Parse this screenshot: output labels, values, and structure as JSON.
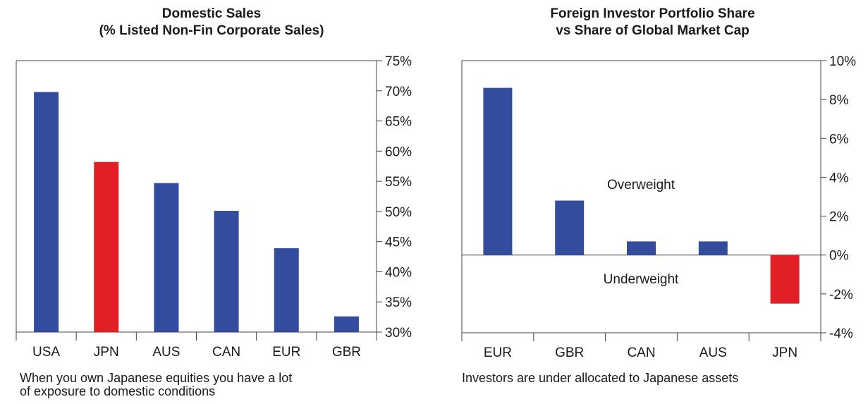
{
  "colors": {
    "primary": "#344C9E",
    "highlight": "#E01F26",
    "axis": "#444444"
  },
  "chart_data": [
    {
      "type": "bar",
      "title_line1": "Domestic Sales",
      "title_line2": "(% Listed Non-Fin Corporate Sales)",
      "categories": [
        "USA",
        "JPN",
        "AUS",
        "CAN",
        "EUR",
        "GBR"
      ],
      "values": [
        69.8,
        58.2,
        54.7,
        50.1,
        43.9,
        32.6
      ],
      "highlight": "JPN",
      "ylim": [
        30,
        75
      ],
      "yticks": [
        30,
        35,
        40,
        45,
        50,
        55,
        60,
        65,
        70,
        75
      ],
      "ytick_labels": [
        "30%",
        "35%",
        "40%",
        "45%",
        "50%",
        "55%",
        "60%",
        "65%",
        "70%",
        "75%"
      ],
      "y_axis_side": "right",
      "caption_line1": "When you own Japanese equities you have a lot",
      "caption_line2": "of exposure to domestic conditions"
    },
    {
      "type": "bar",
      "title_line1": "Foreign Investor Portfolio Share",
      "title_line2": "vs Share of Global Market Cap",
      "categories": [
        "EUR",
        "GBR",
        "CAN",
        "AUS",
        "JPN"
      ],
      "values": [
        8.6,
        2.8,
        0.7,
        0.7,
        -2.5
      ],
      "highlight": "JPN",
      "ylim": [
        -4,
        10
      ],
      "yticks": [
        -4,
        -2,
        0,
        2,
        4,
        6,
        8,
        10
      ],
      "ytick_labels": [
        "-4%",
        "-2%",
        "0%",
        "2%",
        "4%",
        "6%",
        "8%",
        "10%"
      ],
      "y_axis_side": "right",
      "annotations": [
        "Overweight",
        "Underweight"
      ],
      "caption_line1": "Investors are under allocated to Japanese assets"
    }
  ]
}
